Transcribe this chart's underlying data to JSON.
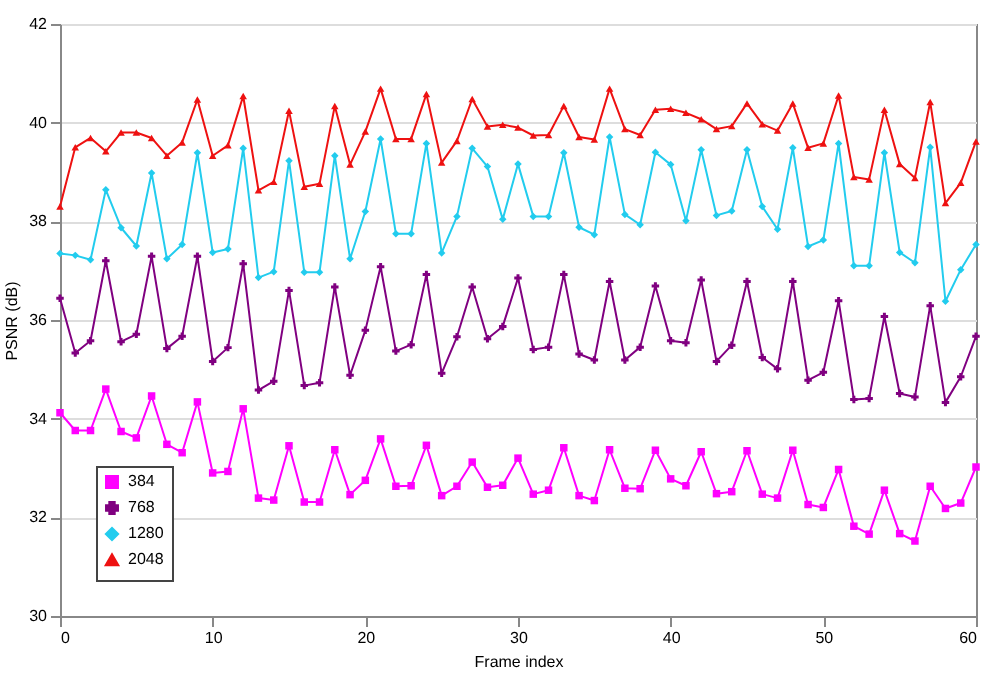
{
  "chart_data": {
    "type": "line",
    "xlabel": "Frame index",
    "ylabel": "PSNR (dB)",
    "x": [
      0,
      1,
      2,
      3,
      4,
      5,
      6,
      7,
      8,
      9,
      10,
      11,
      12,
      13,
      14,
      15,
      16,
      17,
      18,
      19,
      20,
      21,
      22,
      23,
      24,
      25,
      26,
      27,
      28,
      29,
      30,
      31,
      32,
      33,
      34,
      35,
      36,
      37,
      38,
      39,
      40,
      41,
      42,
      43,
      44,
      45,
      46,
      47,
      48,
      49,
      50,
      51,
      52,
      53,
      54,
      55,
      56,
      57,
      58,
      59,
      60
    ],
    "xlim": [
      0,
      60
    ],
    "xticks": [
      0,
      10,
      20,
      30,
      40,
      50,
      60
    ],
    "ylim": [
      30,
      42
    ],
    "yticks": [
      30,
      32,
      34,
      36,
      38,
      40,
      42
    ],
    "grid": "y",
    "legend": "bottom left",
    "series": [
      {
        "name": "384",
        "color": "#ff00ff",
        "marker": "square",
        "values": [
          34.12,
          33.76,
          33.76,
          34.6,
          33.74,
          33.61,
          34.46,
          33.48,
          33.31,
          34.34,
          32.9,
          32.93,
          34.2,
          32.39,
          32.35,
          33.45,
          32.31,
          32.31,
          33.37,
          32.46,
          32.75,
          33.59,
          32.63,
          32.64,
          33.46,
          32.44,
          32.63,
          33.12,
          32.61,
          32.65,
          33.2,
          32.47,
          32.55,
          33.41,
          32.44,
          32.34,
          33.37,
          32.59,
          32.58,
          33.36,
          32.78,
          32.64,
          33.33,
          32.48,
          32.52,
          33.35,
          32.47,
          32.39,
          33.36,
          32.26,
          32.2,
          32.97,
          31.82,
          31.66,
          32.55,
          31.67,
          31.52,
          32.63,
          32.18,
          32.29,
          33.02
        ]
      },
      {
        "name": "768",
        "color": "#800080",
        "marker": "cross",
        "values": [
          36.44,
          35.33,
          35.58,
          37.2,
          35.56,
          35.71,
          37.29,
          35.42,
          35.67,
          37.29,
          35.16,
          35.44,
          37.14,
          34.58,
          34.76,
          36.6,
          34.67,
          34.73,
          36.67,
          34.88,
          35.79,
          37.08,
          35.37,
          35.5,
          36.92,
          34.92,
          35.66,
          36.67,
          35.62,
          35.87,
          36.85,
          35.4,
          35.45,
          36.92,
          35.31,
          35.19,
          36.78,
          35.19,
          35.45,
          36.69,
          35.58,
          35.54,
          36.81,
          35.16,
          35.49,
          36.78,
          35.24,
          35.01,
          36.78,
          34.78,
          34.94,
          36.39,
          34.39,
          34.41,
          36.07,
          34.51,
          34.44,
          36.29,
          34.33,
          34.85,
          35.67
        ]
      },
      {
        "name": "1280",
        "color": "#22ccee",
        "marker": "diamond",
        "values": [
          37.35,
          37.31,
          37.22,
          38.64,
          37.87,
          37.5,
          38.98,
          37.24,
          37.53,
          39.39,
          37.37,
          37.44,
          39.48,
          36.86,
          36.98,
          39.23,
          36.97,
          36.97,
          39.33,
          37.24,
          38.2,
          39.67,
          37.75,
          37.75,
          39.58,
          37.36,
          38.1,
          39.48,
          39.11,
          38.04,
          39.16,
          38.1,
          38.1,
          39.39,
          37.88,
          37.73,
          39.71,
          38.14,
          37.93,
          39.4,
          39.15,
          38.01,
          39.45,
          38.12,
          38.21,
          39.45,
          38.3,
          37.84,
          39.49,
          37.49,
          37.62,
          39.58,
          37.1,
          37.1,
          39.39,
          37.37,
          37.16,
          39.5,
          36.38,
          37.02,
          37.53
        ]
      },
      {
        "name": "2048",
        "color": "#ee1111",
        "marker": "triangle",
        "values": [
          38.3,
          39.5,
          39.69,
          39.42,
          39.8,
          39.8,
          39.69,
          39.33,
          39.6,
          40.47,
          39.33,
          39.54,
          40.54,
          38.63,
          38.8,
          40.24,
          38.7,
          38.76,
          40.34,
          39.15,
          39.82,
          40.69,
          39.67,
          39.67,
          40.58,
          39.19,
          39.63,
          40.48,
          39.92,
          39.96,
          39.9,
          39.74,
          39.75,
          40.34,
          39.71,
          39.66,
          40.69,
          39.87,
          39.75,
          40.26,
          40.28,
          40.2,
          40.07,
          39.87,
          39.93,
          40.39,
          39.97,
          39.84,
          40.39,
          39.49,
          39.58,
          40.55,
          38.9,
          38.85,
          40.26,
          39.16,
          38.88,
          40.42,
          38.37,
          38.78,
          39.62
        ]
      }
    ]
  }
}
